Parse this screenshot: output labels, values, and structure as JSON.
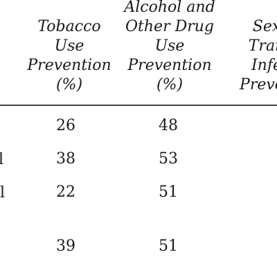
{
  "headers": {
    "tobacco": [
      "Tobacco",
      "Use",
      "Prevention",
      "(%)"
    ],
    "alcohol": [
      "Alcohol and",
      "Other Drug",
      "Use",
      "Prevention",
      "(%)"
    ],
    "sexual": [
      "Sex",
      "Tran",
      "Infe",
      "Preven"
    ]
  },
  "row_label_fragments": [
    "",
    "l",
    "l",
    "",
    ""
  ],
  "rows": [
    {
      "tobacco": "26",
      "alcohol": "48"
    },
    {
      "tobacco": "38",
      "alcohol": "53"
    },
    {
      "tobacco": "22",
      "alcohol": "51"
    },
    {
      "tobacco": "39",
      "alcohol": "51"
    }
  ]
}
